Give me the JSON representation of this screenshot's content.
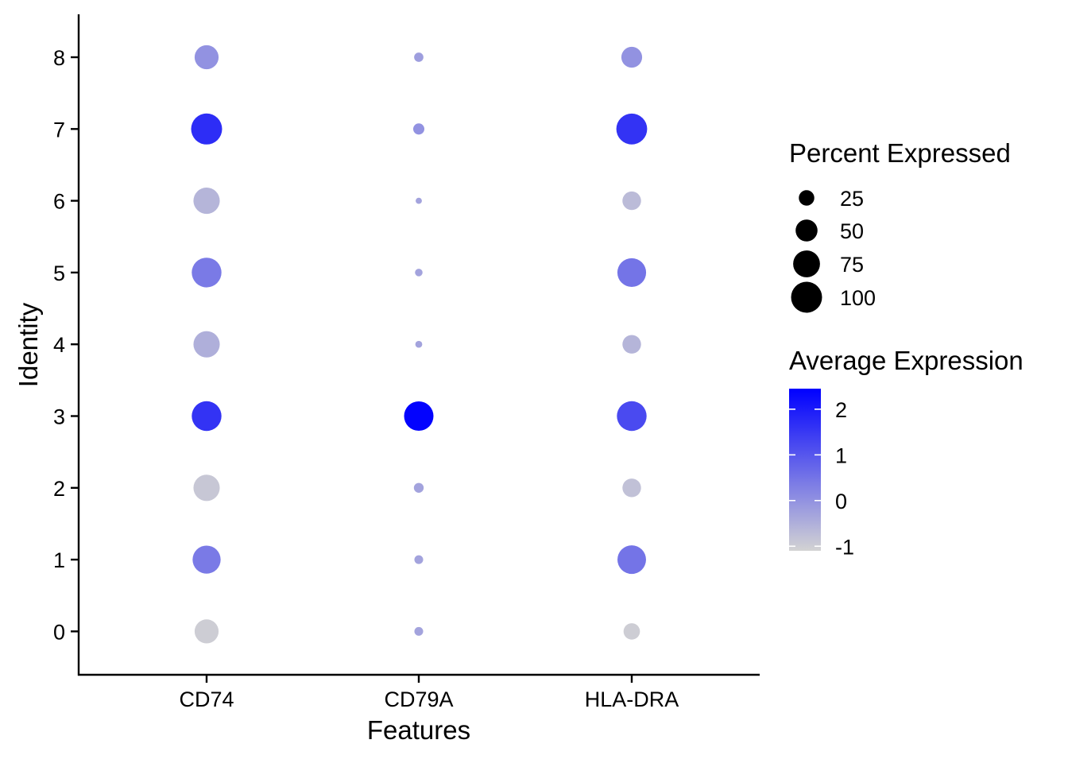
{
  "chart_data": {
    "type": "dot",
    "title": "",
    "xlabel": "Features",
    "ylabel": "Identity",
    "features": [
      "CD74",
      "CD79A",
      "HLA-DRA"
    ],
    "identities": [
      "0",
      "1",
      "2",
      "3",
      "4",
      "5",
      "6",
      "7",
      "8"
    ],
    "series": [
      {
        "name": "CD74",
        "percent_expressed": [
          60,
          82,
          72,
          92,
          72,
          92,
          72,
          100,
          60
        ],
        "average_expression": [
          -1.0,
          0.4,
          -0.9,
          1.6,
          -0.5,
          0.4,
          -0.6,
          1.7,
          0.0
        ]
      },
      {
        "name": "CD79A",
        "percent_expressed": [
          8,
          8,
          10,
          90,
          5,
          6,
          4,
          13,
          9
        ],
        "average_expression": [
          -0.3,
          -0.3,
          -0.3,
          2.4,
          -0.3,
          -0.3,
          -0.3,
          0.0,
          -0.2
        ]
      },
      {
        "name": "HLA-DRA",
        "percent_expressed": [
          28,
          85,
          36,
          92,
          36,
          86,
          36,
          99,
          45
        ],
        "average_expression": [
          -1.0,
          0.5,
          -0.8,
          1.2,
          -0.6,
          0.5,
          -0.7,
          1.6,
          0.0
        ]
      }
    ],
    "size_legend": {
      "title": "Percent Expressed",
      "breaks": [
        25,
        50,
        75,
        100
      ],
      "labels": [
        "25",
        "50",
        "75",
        "100"
      ]
    },
    "color_legend": {
      "title": "Average Expression",
      "breaks": [
        2,
        1,
        0,
        -1
      ],
      "labels": [
        "2",
        "1",
        "0",
        "-1"
      ],
      "low_color": "#d3d3d3",
      "high_color": "#0000ff",
      "range": [
        -1.1,
        2.45
      ]
    },
    "grid": false,
    "legend_position": "right"
  }
}
